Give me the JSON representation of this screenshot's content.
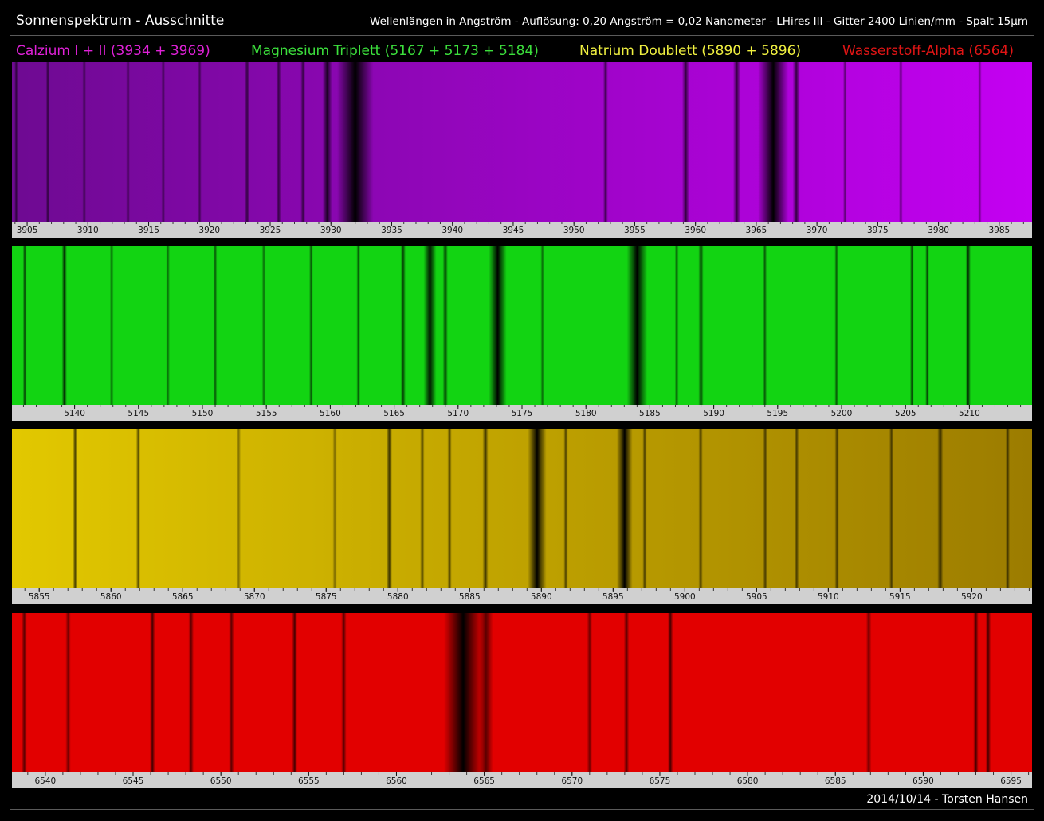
{
  "title": "Sonnenspektrum - Ausschnitte",
  "subtitle": "Wellenlängen in Angström  -  Auflösung: 0,20 Angström = 0,02 Nanometer - LHires III - Gitter 2400 Linien/mm - Spalt 15µm",
  "footer": "2014/10/14 - Torsten Hansen",
  "chart_data": [
    {
      "type": "spectrum",
      "label": "Calzium I + II (3934 + 3969)",
      "label_color": "#e021d8",
      "colors": [
        "#6e0a92",
        "#c400f2"
      ],
      "xlim": [
        3903.75,
        3987.7
      ],
      "xticks": [
        3905,
        3910,
        3915,
        3920,
        3925,
        3930,
        3935,
        3940,
        3945,
        3950,
        3955,
        3960,
        3965,
        3970,
        3975,
        3980,
        3985
      ],
      "x": [
        3904.1,
        3906.7,
        3909.7,
        3913.3,
        3916.2,
        3919.2,
        3923.1,
        3925.7,
        3927.7,
        3929.7,
        3932.0,
        3952.6,
        3959.2,
        3963.4,
        3966.4,
        3968.3,
        3972.3,
        3976.9,
        3983.4
      ],
      "values": [
        0.6,
        0.6,
        0.5,
        0.5,
        0.5,
        0.5,
        0.6,
        0.6,
        0.6,
        0.8,
        1,
        0.6,
        0.7,
        0.7,
        1,
        0.7,
        0.5,
        0.5,
        0.4
      ],
      "widths": [
        0.3,
        0.3,
        0.3,
        0.3,
        0.3,
        0.3,
        0.4,
        0.4,
        0.4,
        0.8,
        3,
        0.4,
        0.6,
        0.6,
        2.5,
        0.6,
        0.3,
        0.3,
        0.3
      ]
    },
    {
      "type": "spectrum",
      "label": "Magnesium Triplett (5167 + 5173 + 5184)",
      "label_color": "#3ce03c",
      "colors": [
        "#12d412",
        "#12d412"
      ],
      "xlim": [
        5135.1,
        5214.9
      ],
      "xticks": [
        5140,
        5145,
        5150,
        5155,
        5160,
        5165,
        5170,
        5175,
        5180,
        5185,
        5190,
        5195,
        5200,
        5205,
        5210
      ],
      "x": [
        5136.1,
        5139.2,
        5142.9,
        5147.3,
        5151.0,
        5154.8,
        5158.5,
        5162.2,
        5165.7,
        5167.8,
        5169.0,
        5173.1,
        5176.6,
        5184.0,
        5187.1,
        5189.0,
        5194.0,
        5199.6,
        5205.5,
        5206.7,
        5209.9
      ],
      "values": [
        0.7,
        0.8,
        0.5,
        0.5,
        0.6,
        0.5,
        0.6,
        0.6,
        0.7,
        0.9,
        0.7,
        1,
        0.5,
        1,
        0.6,
        0.7,
        0.6,
        0.6,
        0.7,
        0.7,
        0.8
      ],
      "widths": [
        0.3,
        0.4,
        0.3,
        0.3,
        0.3,
        0.3,
        0.3,
        0.3,
        0.4,
        1,
        0.4,
        1.4,
        0.3,
        1.6,
        0.3,
        0.4,
        0.3,
        0.3,
        0.3,
        0.3,
        0.4
      ]
    },
    {
      "type": "spectrum",
      "label": "Natrium Doublett (5890 + 5896)",
      "label_color": "#f0f040",
      "colors": [
        "#e2c800",
        "#9c7c00"
      ],
      "xlim": [
        5853.1,
        5924.2
      ],
      "xticks": [
        5855,
        5860,
        5865,
        5870,
        5875,
        5880,
        5885,
        5890,
        5895,
        5900,
        5905,
        5910,
        5915,
        5920
      ],
      "x": [
        5857.5,
        5861.9,
        5868.9,
        5875.6,
        5879.4,
        5881.7,
        5883.6,
        5886.1,
        5889.7,
        5891.7,
        5895.8,
        5897.2,
        5901.1,
        5905.6,
        5907.8,
        5910.6,
        5914.4,
        5917.8,
        5922.5
      ],
      "values": [
        0.7,
        0.6,
        0.4,
        0.4,
        0.7,
        0.6,
        0.6,
        0.7,
        1,
        0.6,
        1,
        0.6,
        0.6,
        0.6,
        0.6,
        0.6,
        0.6,
        0.7,
        0.6
      ],
      "widths": [
        0.3,
        0.3,
        0.3,
        0.3,
        0.4,
        0.3,
        0.3,
        0.4,
        1.3,
        0.3,
        1.1,
        0.3,
        0.3,
        0.3,
        0.3,
        0.3,
        0.3,
        0.4,
        0.3
      ]
    },
    {
      "type": "spectrum",
      "label": "Wasserstoff-Alpha (6564)",
      "label_color": "#e01515",
      "colors": [
        "#e20000",
        "#e20000"
      ],
      "xlim": [
        6538.1,
        6596.2
      ],
      "xticks": [
        6540,
        6545,
        6550,
        6555,
        6560,
        6565,
        6570,
        6575,
        6580,
        6585,
        6590,
        6595
      ],
      "x": [
        6538.8,
        6541.3,
        6546.1,
        6548.3,
        6550.6,
        6554.2,
        6557.0,
        6563.8,
        6565.1,
        6571.0,
        6573.1,
        6575.6,
        6586.9,
        6593.0,
        6593.7
      ],
      "values": [
        0.6,
        0.5,
        0.7,
        0.6,
        0.6,
        0.7,
        0.6,
        1,
        0.6,
        0.5,
        0.6,
        0.7,
        0.5,
        0.7,
        0.7
      ],
      "widths": [
        0.3,
        0.3,
        0.3,
        0.3,
        0.3,
        0.3,
        0.3,
        2.2,
        0.8,
        0.3,
        0.3,
        0.3,
        0.3,
        0.3,
        0.3
      ]
    }
  ]
}
